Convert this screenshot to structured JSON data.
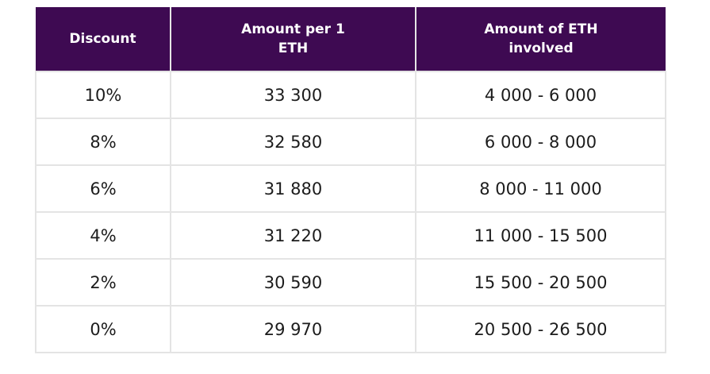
{
  "table": {
    "headers": [
      "Discount",
      "Amount per 1 ETH",
      "Amount of ETH involved"
    ],
    "rows": [
      [
        "10%",
        "33 300",
        "4 000 - 6 000"
      ],
      [
        "8%",
        "32 580",
        "6 000 - 8 000"
      ],
      [
        "6%",
        "31 880",
        "8 000 - 11 000"
      ],
      [
        "4%",
        "31 220",
        "11 000 - 15 500"
      ],
      [
        "2%",
        "30 590",
        "15 500 - 20 500"
      ],
      [
        "0%",
        "29 970",
        "20 500 - 26 500"
      ]
    ]
  },
  "colors": {
    "header_background": "#3e0a52",
    "header_text": "#ffffff",
    "cell_text": "#1c1c1c",
    "grid_lines": "#e4e4e4"
  }
}
